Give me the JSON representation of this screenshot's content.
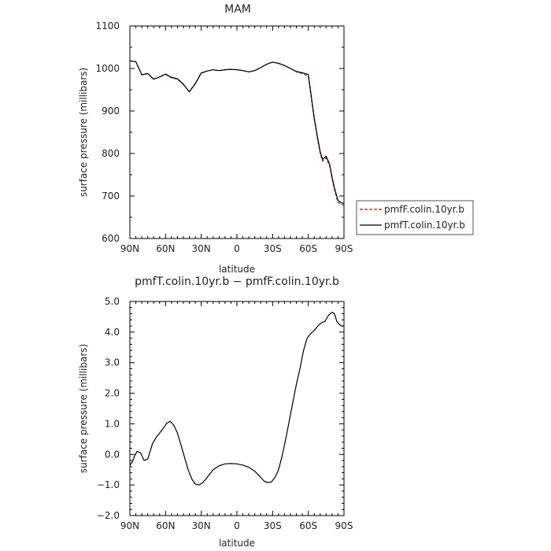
{
  "chart_data": [
    {
      "type": "line",
      "title": "MAM",
      "xlabel": "latitude",
      "ylabel": "surface pressure (millibars)",
      "xlim": [
        90,
        -90
      ],
      "ylim": [
        600,
        1100
      ],
      "x_ticks": [
        90,
        60,
        30,
        0,
        -30,
        -60,
        -90
      ],
      "x_tick_labels": [
        "90N",
        "60N",
        "30N",
        "0",
        "30S",
        "60S",
        "90S"
      ],
      "y_ticks": [
        600,
        700,
        800,
        900,
        1000,
        1100
      ],
      "y_tick_labels": [
        "600",
        "700",
        "800",
        "900",
        "1000",
        "1100"
      ],
      "legend": "right, outside plot",
      "series": [
        {
          "name": "pmfF.colin.10yr.b",
          "color": "#cc0000",
          "dash": "dashed",
          "x": [
            90,
            85,
            80,
            75,
            70,
            65,
            60,
            55,
            50,
            45,
            40,
            35,
            30,
            25,
            20,
            15,
            10,
            5,
            0,
            -5,
            -10,
            -15,
            -20,
            -25,
            -30,
            -35,
            -40,
            -45,
            -50,
            -55,
            -60,
            -62,
            -65,
            -68,
            -70,
            -72,
            -75,
            -78,
            -80,
            -82,
            -85,
            -88,
            -90
          ],
          "y": [
            1018,
            1016,
            985,
            988,
            975,
            980,
            986,
            978,
            975,
            962,
            946,
            965,
            990,
            994,
            997,
            995,
            997,
            998,
            997,
            995,
            992,
            995,
            1002,
            1010,
            1015,
            1012,
            1007,
            1000,
            992,
            988,
            982,
            940,
            880,
            830,
            800,
            782,
            790,
            770,
            740,
            715,
            685,
            680,
            678
          ]
        },
        {
          "name": "pmfT.colin.10yr.b",
          "color": "#000000",
          "dash": "solid",
          "x": [
            90,
            85,
            80,
            75,
            70,
            65,
            60,
            55,
            50,
            45,
            40,
            35,
            30,
            25,
            20,
            15,
            10,
            5,
            0,
            -5,
            -10,
            -15,
            -20,
            -25,
            -30,
            -35,
            -40,
            -45,
            -50,
            -55,
            -60,
            -62,
            -65,
            -68,
            -70,
            -72,
            -75,
            -78,
            -80,
            -82,
            -85,
            -88,
            -90
          ],
          "y": [
            1018,
            1016,
            985,
            988,
            975,
            980,
            987,
            979,
            976,
            963,
            945,
            964,
            989,
            994,
            997,
            995,
            997,
            998,
            997,
            995,
            992,
            995,
            1002,
            1010,
            1015,
            1012,
            1007,
            1000,
            993,
            990,
            986,
            945,
            884,
            834,
            804,
            786,
            794,
            774,
            744,
            719,
            689,
            684,
            682
          ]
        }
      ]
    },
    {
      "type": "line",
      "title": "pmfT.colin.10yr.b − pmfF.colin.10yr.b",
      "xlabel": "latitude",
      "ylabel": "surface pressure (millibars)",
      "xlim": [
        90,
        -90
      ],
      "ylim": [
        -2.0,
        5.0
      ],
      "x_ticks": [
        90,
        60,
        30,
        0,
        -30,
        -60,
        -90
      ],
      "x_tick_labels": [
        "90N",
        "60N",
        "30N",
        "0",
        "30S",
        "60S",
        "90S"
      ],
      "y_ticks": [
        -2,
        -1,
        0,
        1,
        2,
        3,
        4,
        5
      ],
      "y_tick_labels": [
        "−2.0",
        "−1.0",
        "0.0",
        "1.0",
        "2.0",
        "3.0",
        "4.0",
        "5.0"
      ],
      "series": [
        {
          "color": "#000000",
          "dash": "solid",
          "x": [
            90,
            88,
            86,
            84,
            81,
            78,
            75,
            73,
            71,
            68,
            65,
            62,
            59,
            56,
            53,
            50,
            47,
            44,
            41,
            38,
            35,
            32,
            29,
            26,
            23,
            20,
            15,
            10,
            5,
            0,
            -5,
            -10,
            -15,
            -20,
            -23,
            -26,
            -29,
            -32,
            -35,
            -38,
            -41,
            -44,
            -47,
            -50,
            -53,
            -56,
            -59,
            -62,
            -65,
            -68,
            -71,
            -74,
            -77,
            -80,
            -82,
            -84,
            -86,
            -88,
            -90
          ],
          "y": [
            -0.35,
            -0.25,
            -0.05,
            0.1,
            0.05,
            -0.2,
            -0.15,
            0.1,
            0.35,
            0.55,
            0.7,
            0.85,
            1.02,
            1.08,
            0.95,
            0.7,
            0.3,
            -0.1,
            -0.5,
            -0.8,
            -0.97,
            -1.0,
            -0.93,
            -0.8,
            -0.65,
            -0.5,
            -0.37,
            -0.31,
            -0.3,
            -0.31,
            -0.35,
            -0.42,
            -0.55,
            -0.75,
            -0.88,
            -0.92,
            -0.9,
            -0.75,
            -0.5,
            -0.05,
            0.5,
            1.1,
            1.7,
            2.3,
            2.8,
            3.4,
            3.8,
            3.95,
            4.05,
            4.2,
            4.3,
            4.35,
            4.55,
            4.65,
            4.6,
            4.35,
            4.25,
            4.2,
            4.2
          ]
        }
      ]
    }
  ]
}
